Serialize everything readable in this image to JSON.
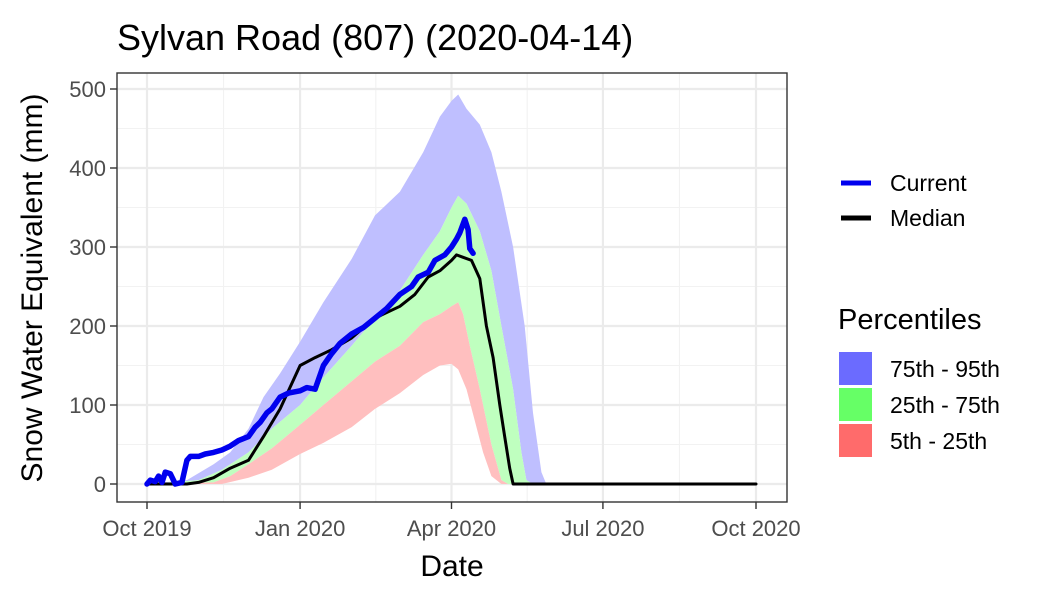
{
  "chart_data": {
    "type": "area",
    "title": "Sylvan Road (807) (2020-04-14)",
    "xlabel": "Date",
    "ylabel": "Snow Water Equivalent (mm)",
    "xlim": [
      "2019-10-01",
      "2020-10-01"
    ],
    "ylim": [
      0,
      500
    ],
    "x_ticks": [
      {
        "date": "2019-10-01",
        "label": "Oct 2019"
      },
      {
        "date": "2020-01-01",
        "label": "Jan 2020"
      },
      {
        "date": "2020-04-01",
        "label": "Apr 2020"
      },
      {
        "date": "2020-07-01",
        "label": "Jul 2020"
      },
      {
        "date": "2020-10-01",
        "label": "Oct 2020"
      }
    ],
    "y_ticks": [
      0,
      100,
      200,
      300,
      400,
      500
    ],
    "grid": true,
    "legend_position": "right",
    "series_legend": [
      {
        "name": "Current",
        "color": "#0000ee"
      },
      {
        "name": "Median",
        "color": "#000000"
      }
    ],
    "bands_legend_title": "Percentiles",
    "bands_legend": [
      {
        "name": "75th - 95th",
        "color": "#6b6bff"
      },
      {
        "name": "25th - 75th",
        "color": "#66ff66"
      },
      {
        "name": "5th - 25th",
        "color": "#ff6b6b"
      }
    ],
    "bands": {
      "p5_25": {
        "name": "5th - 25th",
        "color": "#ffbfbf",
        "lower": [
          [
            "2019-10-01",
            0
          ],
          [
            "2019-11-15",
            0
          ],
          [
            "2019-12-01",
            8
          ],
          [
            "2019-12-15",
            18
          ],
          [
            "2020-01-01",
            38
          ],
          [
            "2020-01-15",
            52
          ],
          [
            "2020-02-01",
            72
          ],
          [
            "2020-02-15",
            95
          ],
          [
            "2020-03-01",
            115
          ],
          [
            "2020-03-15",
            138
          ],
          [
            "2020-03-25",
            150
          ],
          [
            "2020-04-01",
            152
          ],
          [
            "2020-04-05",
            145
          ],
          [
            "2020-04-10",
            120
          ],
          [
            "2020-04-15",
            80
          ],
          [
            "2020-04-20",
            40
          ],
          [
            "2020-04-25",
            10
          ],
          [
            "2020-05-01",
            0
          ],
          [
            "2020-10-01",
            0
          ]
        ],
        "upper": [
          [
            "2019-10-01",
            0
          ],
          [
            "2019-11-10",
            2
          ],
          [
            "2019-11-20",
            10
          ],
          [
            "2019-12-01",
            25
          ],
          [
            "2019-12-15",
            45
          ],
          [
            "2020-01-01",
            75
          ],
          [
            "2020-01-15",
            100
          ],
          [
            "2020-02-01",
            130
          ],
          [
            "2020-02-15",
            155
          ],
          [
            "2020-03-01",
            175
          ],
          [
            "2020-03-15",
            205
          ],
          [
            "2020-03-25",
            215
          ],
          [
            "2020-04-01",
            225
          ],
          [
            "2020-04-05",
            230
          ],
          [
            "2020-04-08",
            215
          ],
          [
            "2020-04-12",
            175
          ],
          [
            "2020-04-18",
            120
          ],
          [
            "2020-04-25",
            50
          ],
          [
            "2020-05-01",
            5
          ],
          [
            "2020-05-05",
            0
          ],
          [
            "2020-10-01",
            0
          ]
        ]
      },
      "p25_75": {
        "name": "25th - 75th",
        "color": "#bfffbf",
        "upper": [
          [
            "2019-10-01",
            0
          ],
          [
            "2019-11-01",
            5
          ],
          [
            "2019-11-15",
            18
          ],
          [
            "2019-12-01",
            40
          ],
          [
            "2019-12-15",
            70
          ],
          [
            "2020-01-01",
            100
          ],
          [
            "2020-01-15",
            135
          ],
          [
            "2020-02-01",
            175
          ],
          [
            "2020-02-15",
            210
          ],
          [
            "2020-03-01",
            245
          ],
          [
            "2020-03-15",
            290
          ],
          [
            "2020-03-25",
            320
          ],
          [
            "2020-04-01",
            350
          ],
          [
            "2020-04-05",
            365
          ],
          [
            "2020-04-10",
            355
          ],
          [
            "2020-04-18",
            320
          ],
          [
            "2020-04-25",
            270
          ],
          [
            "2020-05-01",
            200
          ],
          [
            "2020-05-08",
            120
          ],
          [
            "2020-05-13",
            40
          ],
          [
            "2020-05-16",
            5
          ],
          [
            "2020-05-20",
            0
          ],
          [
            "2020-10-01",
            0
          ]
        ]
      },
      "p75_95": {
        "name": "75th - 95th",
        "color": "#bfbfff",
        "upper": [
          [
            "2019-10-01",
            0
          ],
          [
            "2019-10-25",
            5
          ],
          [
            "2019-11-10",
            25
          ],
          [
            "2019-11-20",
            40
          ],
          [
            "2019-12-01",
            70
          ],
          [
            "2019-12-10",
            110
          ],
          [
            "2019-12-20",
            140
          ],
          [
            "2020-01-01",
            180
          ],
          [
            "2020-01-15",
            230
          ],
          [
            "2020-02-01",
            285
          ],
          [
            "2020-02-15",
            340
          ],
          [
            "2020-03-01",
            370
          ],
          [
            "2020-03-15",
            420
          ],
          [
            "2020-03-25",
            465
          ],
          [
            "2020-04-01",
            485
          ],
          [
            "2020-04-05",
            493
          ],
          [
            "2020-04-10",
            475
          ],
          [
            "2020-04-18",
            455
          ],
          [
            "2020-04-25",
            420
          ],
          [
            "2020-05-01",
            370
          ],
          [
            "2020-05-08",
            300
          ],
          [
            "2020-05-15",
            200
          ],
          [
            "2020-05-20",
            90
          ],
          [
            "2020-05-25",
            15
          ],
          [
            "2020-05-28",
            0
          ],
          [
            "2020-10-01",
            0
          ]
        ]
      }
    },
    "series": [
      {
        "name": "Current",
        "color": "#0000ee",
        "points": [
          [
            "2019-10-01",
            0
          ],
          [
            "2019-10-03",
            5
          ],
          [
            "2019-10-06",
            3
          ],
          [
            "2019-10-08",
            10
          ],
          [
            "2019-10-10",
            2
          ],
          [
            "2019-10-12",
            15
          ],
          [
            "2019-10-15",
            13
          ],
          [
            "2019-10-18",
            0
          ],
          [
            "2019-10-22",
            2
          ],
          [
            "2019-10-25",
            30
          ],
          [
            "2019-10-27",
            35
          ],
          [
            "2019-11-01",
            35
          ],
          [
            "2019-11-05",
            38
          ],
          [
            "2019-11-10",
            40
          ],
          [
            "2019-11-15",
            43
          ],
          [
            "2019-11-20",
            48
          ],
          [
            "2019-11-25",
            55
          ],
          [
            "2019-12-01",
            60
          ],
          [
            "2019-12-05",
            72
          ],
          [
            "2019-12-08",
            78
          ],
          [
            "2019-12-12",
            90
          ],
          [
            "2019-12-15",
            95
          ],
          [
            "2019-12-20",
            110
          ],
          [
            "2019-12-25",
            115
          ],
          [
            "2020-01-01",
            118
          ],
          [
            "2020-01-05",
            122
          ],
          [
            "2020-01-10",
            120
          ],
          [
            "2020-01-15",
            150
          ],
          [
            "2020-01-20",
            165
          ],
          [
            "2020-01-25",
            178
          ],
          [
            "2020-02-01",
            190
          ],
          [
            "2020-02-08",
            198
          ],
          [
            "2020-02-15",
            210
          ],
          [
            "2020-02-22",
            222
          ],
          [
            "2020-03-01",
            240
          ],
          [
            "2020-03-08",
            250
          ],
          [
            "2020-03-12",
            262
          ],
          [
            "2020-03-18",
            268
          ],
          [
            "2020-03-22",
            283
          ],
          [
            "2020-03-28",
            290
          ],
          [
            "2020-04-01",
            300
          ],
          [
            "2020-04-04",
            310
          ],
          [
            "2020-04-06",
            318
          ],
          [
            "2020-04-09",
            335
          ],
          [
            "2020-04-11",
            322
          ],
          [
            "2020-04-12",
            298
          ],
          [
            "2020-04-14",
            292
          ]
        ]
      },
      {
        "name": "Median",
        "color": "#000000",
        "points": [
          [
            "2019-10-01",
            0
          ],
          [
            "2019-10-25",
            0
          ],
          [
            "2019-11-01",
            2
          ],
          [
            "2019-11-10",
            8
          ],
          [
            "2019-11-20",
            20
          ],
          [
            "2019-12-01",
            30
          ],
          [
            "2019-12-10",
            60
          ],
          [
            "2019-12-20",
            95
          ],
          [
            "2020-01-01",
            150
          ],
          [
            "2020-01-10",
            160
          ],
          [
            "2020-01-20",
            170
          ],
          [
            "2020-02-01",
            185
          ],
          [
            "2020-02-15",
            210
          ],
          [
            "2020-03-01",
            225
          ],
          [
            "2020-03-10",
            240
          ],
          [
            "2020-03-18",
            262
          ],
          [
            "2020-03-25",
            270
          ],
          [
            "2020-04-01",
            283
          ],
          [
            "2020-04-04",
            290
          ],
          [
            "2020-04-08",
            287
          ],
          [
            "2020-04-13",
            283
          ],
          [
            "2020-04-18",
            260
          ],
          [
            "2020-04-22",
            200
          ],
          [
            "2020-04-26",
            160
          ],
          [
            "2020-04-30",
            100
          ],
          [
            "2020-05-03",
            60
          ],
          [
            "2020-05-06",
            20
          ],
          [
            "2020-05-08",
            0
          ],
          [
            "2020-10-01",
            0
          ]
        ]
      }
    ]
  }
}
